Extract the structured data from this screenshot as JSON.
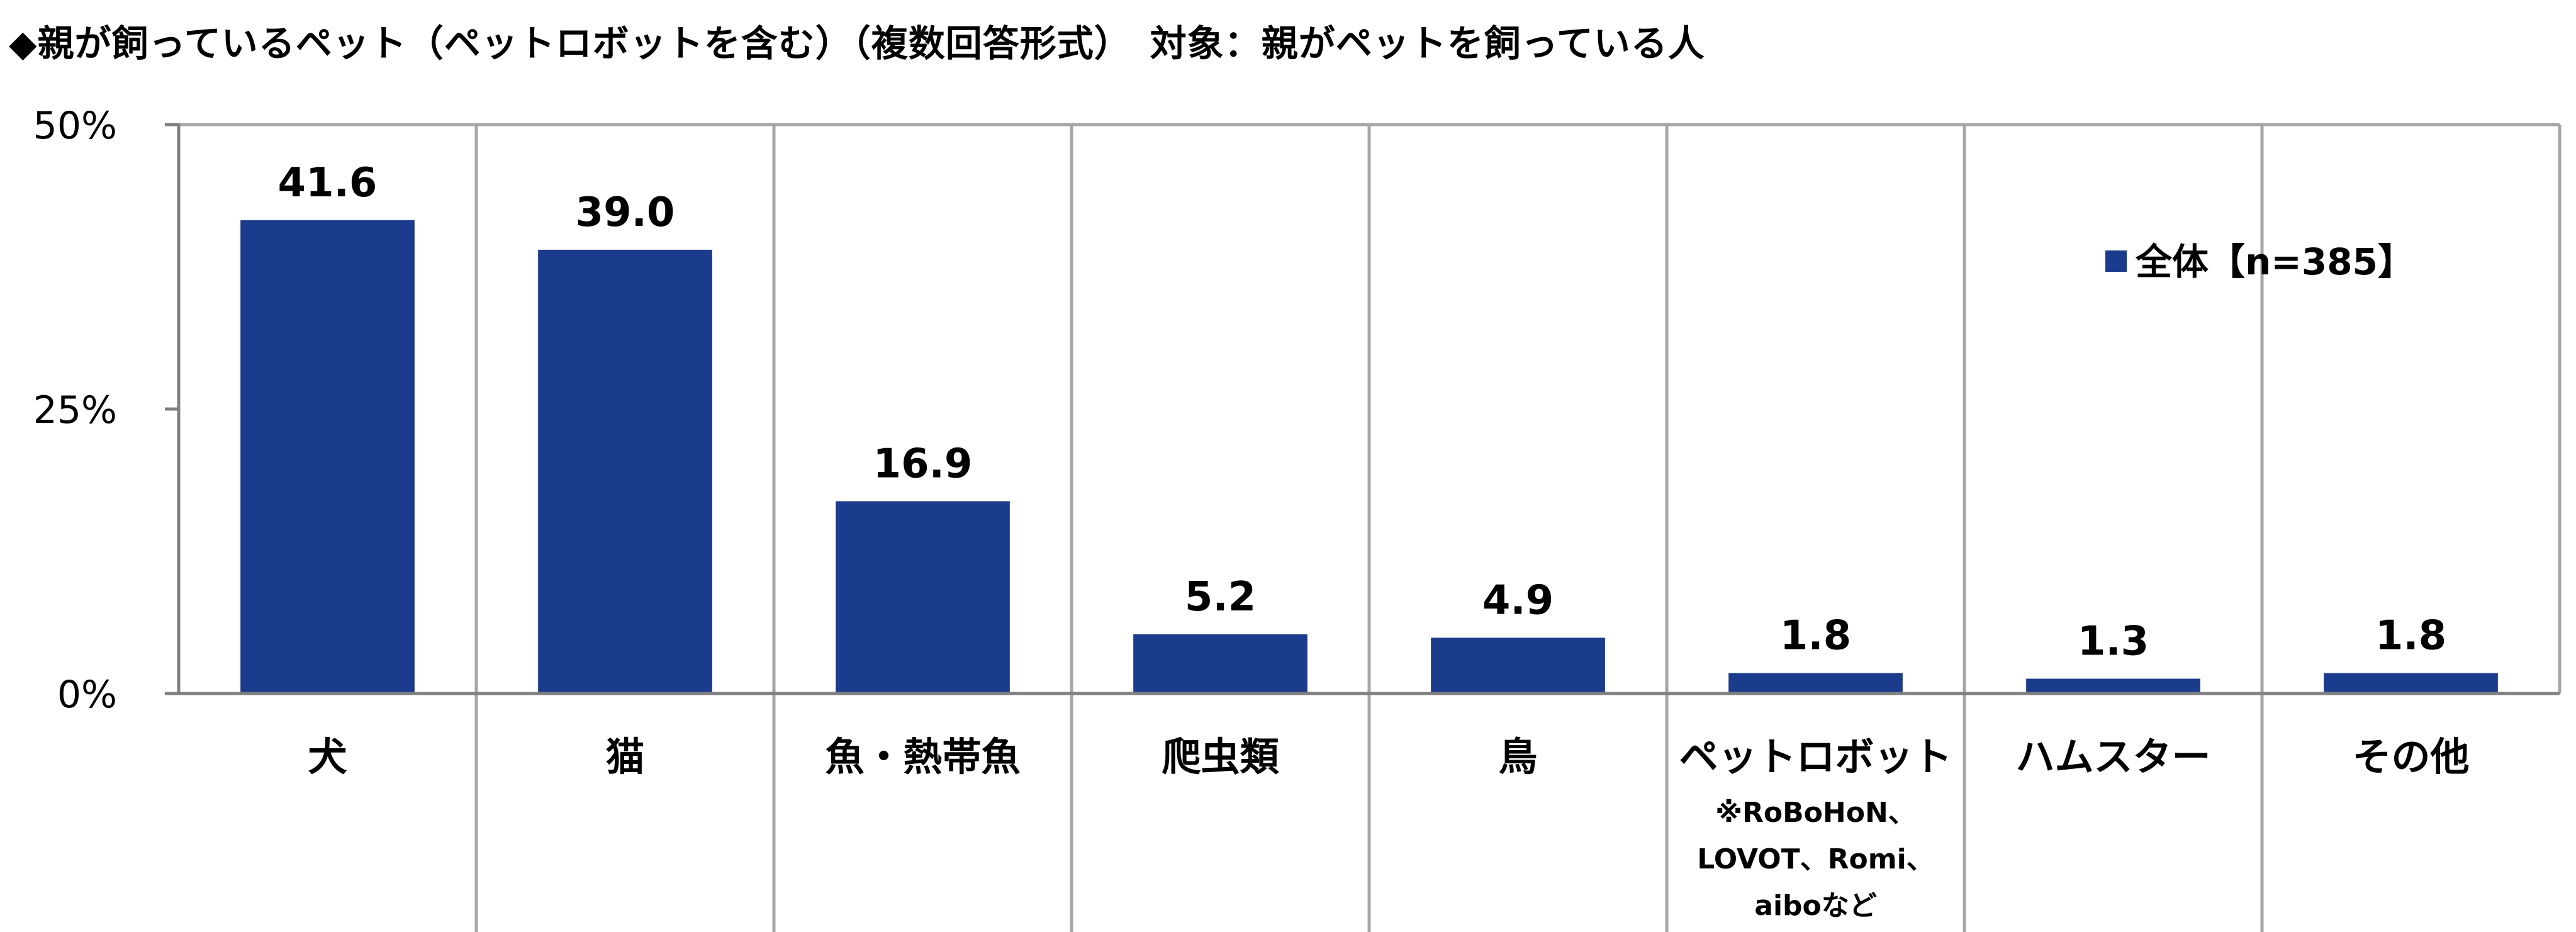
{
  "title": "◆親が飼っているペット（ペットロボットを含む）（複数回答形式）　対象：親がペットを飼っている人",
  "chart_data": {
    "type": "bar",
    "categories": [
      "犬",
      "猫",
      "魚・熱帯魚",
      "爬虫類",
      "鳥",
      "ペットロボット",
      "ハムスター",
      "その他"
    ],
    "category_notes": [
      "",
      "",
      "",
      "",
      "",
      "※RoBoHoN、\nLOVOT、Romi、\naiboなど",
      "",
      ""
    ],
    "series": [
      {
        "name": "全体【n=385】",
        "values": [
          41.6,
          39.0,
          16.9,
          5.2,
          4.9,
          1.8,
          1.3,
          1.8
        ]
      }
    ],
    "value_labels": [
      "41.6",
      "39.0",
      "16.9",
      "5.2",
      "4.9",
      "1.8",
      "1.3",
      "1.8"
    ],
    "ylim": [
      0,
      50
    ],
    "yticks": [
      0,
      25,
      50
    ],
    "ytick_labels": [
      "0%",
      "25%",
      "50%"
    ],
    "grid": "vertical category separators",
    "legend_position": "top-right",
    "bar_color": "#1b3c8c"
  }
}
